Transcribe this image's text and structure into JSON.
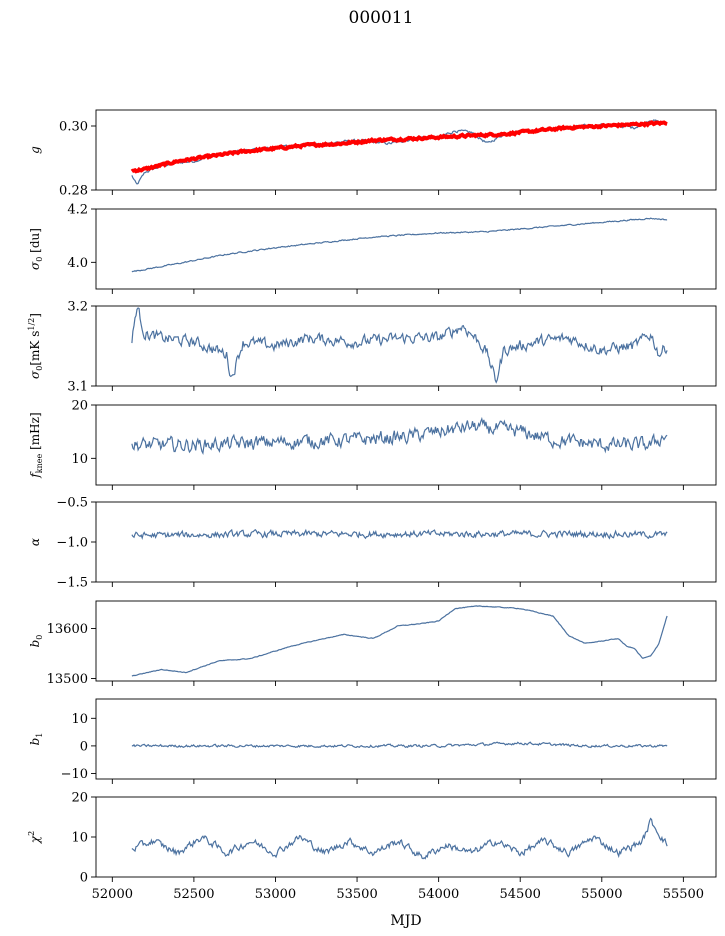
{
  "figure": {
    "title": "000011",
    "xlabel": "MJD"
  },
  "x_ticks": [
    52000,
    52500,
    53000,
    53500,
    54000,
    54500,
    55000,
    55500
  ],
  "colors": {
    "series": "#4c72a0",
    "overlay": "#ff0000"
  },
  "chart_data": [
    {
      "type": "line",
      "ylabel": "g",
      "xlim": [
        51900,
        55700
      ],
      "ylim": [
        0.28,
        0.305
      ],
      "yticks": [
        0.28,
        0.3
      ],
      "ytick_labels": [
        "0.28",
        "0.30"
      ],
      "series": [
        {
          "points": [
            [
              52120,
              0.2845
            ],
            [
              52150,
              0.2815
            ],
            [
              52200,
              0.2855
            ],
            [
              52300,
              0.2875
            ],
            [
              52400,
              0.2885
            ],
            [
              52500,
              0.289
            ],
            [
              52600,
              0.2905
            ],
            [
              52700,
              0.2915
            ],
            [
              52800,
              0.2925
            ],
            [
              52900,
              0.2925
            ],
            [
              53000,
              0.2935
            ],
            [
              53200,
              0.294
            ],
            [
              53400,
              0.295
            ],
            [
              53500,
              0.2955
            ],
            [
              53700,
              0.2945
            ],
            [
              53900,
              0.2965
            ],
            [
              54000,
              0.2965
            ],
            [
              54100,
              0.2985
            ],
            [
              54200,
              0.298
            ],
            [
              54300,
              0.2945
            ],
            [
              54400,
              0.2975
            ],
            [
              54500,
              0.2985
            ],
            [
              54600,
              0.2985
            ],
            [
              54800,
              0.2995
            ],
            [
              55000,
              0.3005
            ],
            [
              55200,
              0.2995
            ],
            [
              55300,
              0.302
            ],
            [
              55400,
              0.3005
            ]
          ],
          "noise": 0.0007
        },
        {
          "points": [
            [
              52120,
              0.286
            ],
            [
              52200,
              0.2865
            ],
            [
              52400,
              0.289
            ],
            [
              52600,
              0.2905
            ],
            [
              52800,
              0.292
            ],
            [
              53000,
              0.293
            ],
            [
              53200,
              0.294
            ],
            [
              53400,
              0.2945
            ],
            [
              53600,
              0.2955
            ],
            [
              53800,
              0.296
            ],
            [
              54000,
              0.2965
            ],
            [
              54200,
              0.297
            ],
            [
              54400,
              0.2975
            ],
            [
              54600,
              0.2985
            ],
            [
              54800,
              0.2995
            ],
            [
              55000,
              0.3
            ],
            [
              55200,
              0.3005
            ],
            [
              55400,
              0.301
            ]
          ],
          "noise": 0.0006,
          "style": "overlay"
        }
      ]
    },
    {
      "type": "line",
      "ylabel": "σ0 [du]",
      "xlim": [
        51900,
        55700
      ],
      "ylim": [
        3.9,
        4.2
      ],
      "yticks": [
        4.0,
        4.2
      ],
      "ytick_labels": [
        "4.0",
        "4.2"
      ],
      "series": [
        {
          "points": [
            [
              52120,
              3.965
            ],
            [
              52400,
              3.995
            ],
            [
              52700,
              4.03
            ],
            [
              53000,
              4.055
            ],
            [
              53300,
              4.075
            ],
            [
              53600,
              4.095
            ],
            [
              54000,
              4.11
            ],
            [
              54300,
              4.115
            ],
            [
              54600,
              4.13
            ],
            [
              55000,
              4.15
            ],
            [
              55300,
              4.165
            ],
            [
              55400,
              4.16
            ]
          ],
          "noise": 0.004
        }
      ]
    },
    {
      "type": "line",
      "ylabel": "σ0[mK s^1/2]",
      "xlim": [
        51900,
        55700
      ],
      "ylim": [
        3.1,
        3.2
      ],
      "yticks": [
        3.1,
        3.2
      ],
      "ytick_labels": [
        "3.1",
        "3.2"
      ],
      "series": [
        {
          "points": [
            [
              52120,
              3.155
            ],
            [
              52150,
              3.2
            ],
            [
              52200,
              3.165
            ],
            [
              52300,
              3.16
            ],
            [
              52500,
              3.155
            ],
            [
              52700,
              3.14
            ],
            [
              52730,
              3.11
            ],
            [
              52800,
              3.155
            ],
            [
              53000,
              3.15
            ],
            [
              53200,
              3.16
            ],
            [
              53500,
              3.155
            ],
            [
              53800,
              3.16
            ],
            [
              54000,
              3.16
            ],
            [
              54150,
              3.175
            ],
            [
              54250,
              3.155
            ],
            [
              54300,
              3.14
            ],
            [
              54350,
              3.105
            ],
            [
              54400,
              3.145
            ],
            [
              54600,
              3.155
            ],
            [
              54800,
              3.16
            ],
            [
              55000,
              3.145
            ],
            [
              55200,
              3.15
            ],
            [
              55300,
              3.165
            ],
            [
              55350,
              3.14
            ],
            [
              55400,
              3.15
            ]
          ],
          "noise": 0.012
        }
      ]
    },
    {
      "type": "line",
      "ylabel": "f_knee [mHz]",
      "xlim": [
        51900,
        55700
      ],
      "ylim": [
        5,
        20
      ],
      "yticks": [
        10,
        20
      ],
      "ytick_labels": [
        "10",
        "20"
      ],
      "series": [
        {
          "points": [
            [
              52120,
              12.5
            ],
            [
              52500,
              12.5
            ],
            [
              53000,
              13
            ],
            [
              53500,
              13.5
            ],
            [
              53800,
              14
            ],
            [
              54000,
              15
            ],
            [
              54200,
              16
            ],
            [
              54500,
              15
            ],
            [
              54700,
              13.5
            ],
            [
              55000,
              12.5
            ],
            [
              55300,
              12.5
            ],
            [
              55400,
              14.5
            ]
          ],
          "noise": 2.2
        }
      ]
    },
    {
      "type": "line",
      "ylabel": "α",
      "xlim": [
        51900,
        55700
      ],
      "ylim": [
        -1.5,
        -0.5
      ],
      "yticks": [
        -1.5,
        -1.0,
        -0.5
      ],
      "ytick_labels": [
        "−1.5",
        "−1.0",
        "−0.5"
      ],
      "series": [
        {
          "points": [
            [
              52120,
              -0.92
            ],
            [
              53000,
              -0.9
            ],
            [
              54000,
              -0.9
            ],
            [
              55000,
              -0.9
            ],
            [
              55400,
              -0.91
            ]
          ],
          "noise": 0.07
        }
      ]
    },
    {
      "type": "line",
      "ylabel": "b0",
      "xlim": [
        51900,
        55700
      ],
      "ylim": [
        13495,
        13655
      ],
      "yticks": [
        13500,
        13600
      ],
      "ytick_labels": [
        "13500",
        "13600"
      ],
      "series": [
        {
          "points": [
            [
              52120,
              13505
            ],
            [
              52300,
              13518
            ],
            [
              52450,
              13512
            ],
            [
              52650,
              13535
            ],
            [
              52850,
              13540
            ],
            [
              53100,
              13565
            ],
            [
              53300,
              13580
            ],
            [
              53420,
              13588
            ],
            [
              53600,
              13580
            ],
            [
              53750,
              13605
            ],
            [
              53900,
              13610
            ],
            [
              54000,
              13615
            ],
            [
              54100,
              13640
            ],
            [
              54250,
              13645
            ],
            [
              54500,
              13640
            ],
            [
              54700,
              13625
            ],
            [
              54800,
              13585
            ],
            [
              54900,
              13570
            ],
            [
              55000,
              13575
            ],
            [
              55100,
              13580
            ],
            [
              55150,
              13565
            ],
            [
              55200,
              13560
            ],
            [
              55250,
              13540
            ],
            [
              55300,
              13545
            ],
            [
              55350,
              13570
            ],
            [
              55400,
              13625
            ]
          ],
          "noise": 1.2
        }
      ]
    },
    {
      "type": "line",
      "ylabel": "b1",
      "xlim": [
        51900,
        55700
      ],
      "ylim": [
        -12,
        17
      ],
      "yticks": [
        -10,
        0,
        10
      ],
      "ytick_labels": [
        "−10",
        "0",
        "10"
      ],
      "series": [
        {
          "points": [
            [
              52120,
              0
            ],
            [
              53000,
              0
            ],
            [
              54000,
              0
            ],
            [
              54500,
              1
            ],
            [
              54900,
              0
            ],
            [
              55000,
              0
            ],
            [
              55100,
              0
            ],
            [
              55400,
              0
            ]
          ],
          "noise": 0.8
        }
      ]
    },
    {
      "type": "line",
      "ylabel": "χ²",
      "xlim": [
        51900,
        55700
      ],
      "ylim": [
        0,
        20
      ],
      "yticks": [
        0,
        10,
        20
      ],
      "ytick_labels": [
        "0",
        "10",
        "20"
      ],
      "series": [
        {
          "points": [
            [
              52120,
              7
            ],
            [
              52250,
              9
            ],
            [
              52400,
              6
            ],
            [
              52550,
              10
            ],
            [
              52700,
              6
            ],
            [
              52850,
              9
            ],
            [
              53000,
              6
            ],
            [
              53150,
              10
            ],
            [
              53300,
              6
            ],
            [
              53450,
              9
            ],
            [
              53600,
              6
            ],
            [
              53750,
              9
            ],
            [
              53900,
              5
            ],
            [
              54050,
              8
            ],
            [
              54200,
              6
            ],
            [
              54350,
              9
            ],
            [
              54500,
              6
            ],
            [
              54650,
              9
            ],
            [
              54800,
              6
            ],
            [
              54950,
              10
            ],
            [
              55100,
              6
            ],
            [
              55250,
              9
            ],
            [
              55300,
              14
            ],
            [
              55400,
              8
            ]
          ],
          "noise": 1.5
        }
      ]
    }
  ]
}
